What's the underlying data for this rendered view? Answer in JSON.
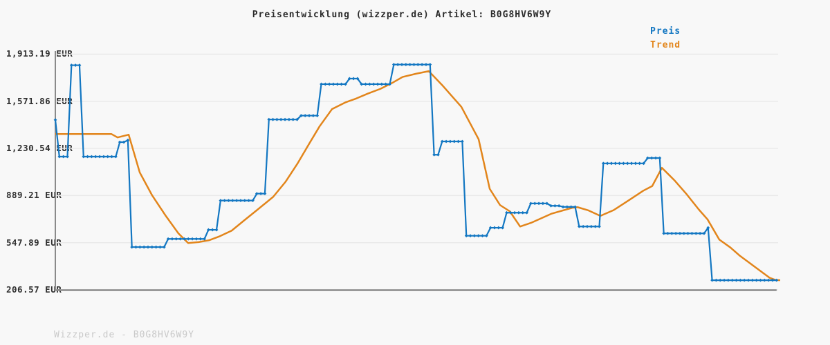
{
  "title": "Preisentwicklung (wizzper.de) Artikel: B0G8HV6W9Y",
  "legend": {
    "preis_label": "Preis",
    "trend_label": "Trend"
  },
  "footer": {
    "watermark": "Wizzper.de - B0G8HV6W9Y"
  },
  "colors": {
    "preis": "#1377c2",
    "trend": "#e2851b",
    "grid": "#e9e9e9",
    "axis": "#8a8a8a",
    "tick_label": "#2f2f2f",
    "watermark": "#c9c9c9",
    "background": "#f8f8f8"
  },
  "axis": {
    "unit": "EUR",
    "y_labels": [
      "1,913.19 EUR",
      "1,571.86 EUR",
      "1,230.54 EUR",
      "889.21 EUR",
      "547.89 EUR",
      "206.57 EUR"
    ],
    "y_values": [
      1913.19,
      1571.86,
      1230.54,
      889.21,
      547.89,
      206.57
    ]
  },
  "chart_data": {
    "type": "line",
    "title": "Preisentwicklung (wizzper.de) Artikel: B0G8HV6W9Y",
    "xlabel": "",
    "ylabel": "EUR",
    "ylim": [
      206.57,
      1913.19
    ],
    "grid": true,
    "legend_position": "top-right",
    "x_unit": "time-index (no tick labels shown)",
    "series": [
      {
        "name": "Preis",
        "color": "#1377c2",
        "markers": true,
        "values": [
          1437,
          1171,
          1171,
          1171,
          1833,
          1833,
          1833,
          1171,
          1171,
          1171,
          1171,
          1171,
          1171,
          1171,
          1171,
          1171,
          1276,
          1276,
          1290,
          516,
          516,
          516,
          516,
          516,
          516,
          516,
          516,
          516,
          575,
          575,
          575,
          575,
          575,
          575,
          575,
          575,
          575,
          575,
          641,
          641,
          641,
          853,
          853,
          853,
          853,
          853,
          853,
          853,
          853,
          853,
          903,
          903,
          903,
          1440,
          1440,
          1440,
          1440,
          1440,
          1440,
          1440,
          1440,
          1468,
          1468,
          1468,
          1468,
          1468,
          1696,
          1696,
          1696,
          1696,
          1696,
          1696,
          1696,
          1736,
          1736,
          1736,
          1696,
          1696,
          1696,
          1696,
          1696,
          1696,
          1696,
          1696,
          1838,
          1838,
          1838,
          1838,
          1838,
          1838,
          1838,
          1838,
          1838,
          1838,
          1185,
          1185,
          1281,
          1281,
          1281,
          1281,
          1281,
          1281,
          598,
          598,
          598,
          598,
          598,
          598,
          656,
          656,
          656,
          656,
          765,
          765,
          765,
          765,
          765,
          765,
          832,
          832,
          832,
          832,
          832,
          815,
          815,
          815,
          807,
          807,
          807,
          807,
          665,
          665,
          665,
          665,
          665,
          665,
          1122,
          1122,
          1122,
          1122,
          1122,
          1122,
          1122,
          1122,
          1122,
          1122,
          1122,
          1161,
          1161,
          1161,
          1161,
          615,
          615,
          615,
          615,
          615,
          615,
          615,
          615,
          615,
          615,
          615,
          656,
          276,
          276,
          276,
          276,
          276,
          276,
          276,
          276,
          276,
          276,
          276,
          276,
          276,
          276,
          276,
          276,
          276
        ]
      },
      {
        "name": "Trend",
        "color": "#e2851b",
        "markers": false,
        "points": [
          [
            0,
            1335
          ],
          [
            13.9,
            1335
          ],
          [
            15.45,
            1310
          ],
          [
            18.2,
            1330
          ],
          [
            20.94,
            1057
          ],
          [
            24.03,
            890
          ],
          [
            27.46,
            740
          ],
          [
            30.55,
            615
          ],
          [
            32.96,
            545
          ],
          [
            35.53,
            552
          ],
          [
            38.11,
            565
          ],
          [
            40.85,
            595
          ],
          [
            43.77,
            635
          ],
          [
            46.69,
            705
          ],
          [
            50.3,
            790
          ],
          [
            54.07,
            880
          ],
          [
            57.16,
            990
          ],
          [
            60.08,
            1120
          ],
          [
            63.0,
            1265
          ],
          [
            65.57,
            1390
          ],
          [
            68.66,
            1515
          ],
          [
            72.09,
            1565
          ],
          [
            74.67,
            1592
          ],
          [
            77.59,
            1628
          ],
          [
            80.68,
            1662
          ],
          [
            83.6,
            1705
          ],
          [
            86.17,
            1748
          ],
          [
            89.6,
            1772
          ],
          [
            92.69,
            1790
          ],
          [
            96.13,
            1685
          ],
          [
            98.7,
            1600
          ],
          [
            100.76,
            1532
          ],
          [
            105.05,
            1297
          ],
          [
            107.8,
            938
          ],
          [
            110.37,
            820
          ],
          [
            112.78,
            775
          ],
          [
            115.35,
            665
          ],
          [
            118.1,
            692
          ],
          [
            123.07,
            757
          ],
          [
            128.22,
            800
          ],
          [
            129.6,
            805
          ],
          [
            132.17,
            783
          ],
          [
            135.26,
            742
          ],
          [
            138.52,
            783
          ],
          [
            142.47,
            858
          ],
          [
            145.9,
            924
          ],
          [
            148.13,
            958
          ],
          [
            150.54,
            1090
          ],
          [
            153.63,
            1000
          ],
          [
            156.72,
            897
          ],
          [
            159.64,
            790
          ],
          [
            161.87,
            716
          ],
          [
            164.78,
            570
          ],
          [
            167.53,
            513
          ],
          [
            169.93,
            452
          ],
          [
            173.37,
            378
          ],
          [
            175.94,
            322
          ],
          [
            177.31,
            293
          ],
          [
            178.69,
            278
          ],
          [
            179.89,
            276
          ]
        ]
      }
    ]
  }
}
